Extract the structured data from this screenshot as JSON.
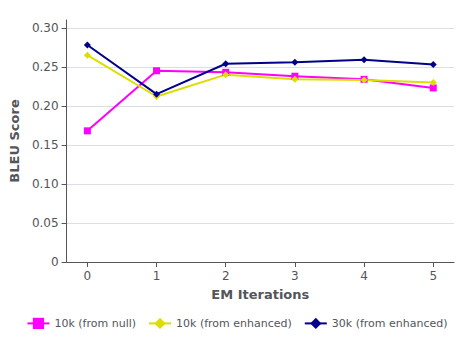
{
  "chart_data": {
    "type": "line",
    "xlabel": "EM Iterations",
    "ylabel": "BLEU Score",
    "x": [
      0,
      1,
      2,
      3,
      4,
      5
    ],
    "series": [
      {
        "name": "10k (from null)",
        "color": "#ff00ff",
        "marker": "square",
        "values": [
          0.168,
          0.245,
          0.243,
          0.238,
          0.234,
          0.223
        ]
      },
      {
        "name": "10k (from enhanced)",
        "color": "#dddd00",
        "marker": "diamond",
        "values": [
          0.265,
          0.212,
          0.24,
          0.234,
          0.233,
          0.23
        ]
      },
      {
        "name": "30k (from enhanced)",
        "color": "#00008b",
        "marker": "diamond",
        "values": [
          0.278,
          0.215,
          0.254,
          0.256,
          0.259,
          0.253
        ]
      }
    ],
    "xlim": [
      -0.3,
      5.3
    ],
    "xticks": [
      0,
      1,
      2,
      3,
      4,
      5
    ],
    "ylim": [
      0,
      0.31
    ],
    "yticks": [
      0,
      0.05,
      {
        "value": 0.1,
        "label": "0.10"
      },
      0.15,
      {
        "value": 0.2,
        "label": "0.20"
      },
      0.25,
      {
        "value": 0.3,
        "label": "0.30"
      }
    ],
    "grid": true,
    "legend": "bottom"
  }
}
